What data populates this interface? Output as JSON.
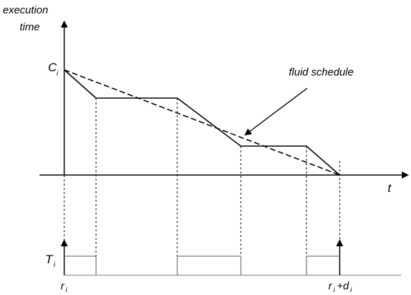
{
  "labels": {
    "y_axis_line1": "execution",
    "y_axis_line2": "time",
    "c_main": "C",
    "c_sub": "i",
    "t_axis": "t",
    "fluid": "fluid schedule",
    "T_main": "T",
    "T_sub": "i",
    "r_main": "r",
    "r_sub": "i",
    "rd_r": "r",
    "rd_r_sub": "i",
    "rd_plus_d": "+d",
    "rd_d_sub": "i"
  }
}
